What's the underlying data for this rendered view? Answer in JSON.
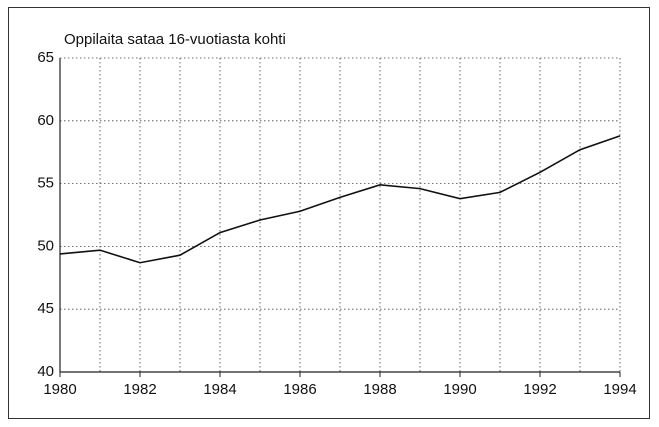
{
  "chart_data": {
    "type": "line",
    "title": "Oppilaita sataa 16-vuotiasta kohti",
    "x": [
      1980,
      1981,
      1982,
      1983,
      1984,
      1985,
      1986,
      1987,
      1988,
      1989,
      1990,
      1991,
      1992,
      1993,
      1994
    ],
    "series": [
      {
        "name": null,
        "color": "#111111",
        "values": [
          49.4,
          49.7,
          48.7,
          49.3,
          51.1,
          52.1,
          52.8,
          53.9,
          54.9,
          54.6,
          53.8,
          54.3,
          55.9,
          57.7,
          58.8
        ]
      }
    ],
    "xlim": [
      1980,
      1994
    ],
    "xticks": [
      1980,
      1982,
      1984,
      1986,
      1988,
      1990,
      1992,
      1994
    ],
    "ylim": [
      40,
      65
    ],
    "yticks": [
      40,
      45,
      50,
      55,
      60,
      65
    ],
    "grid": true
  }
}
